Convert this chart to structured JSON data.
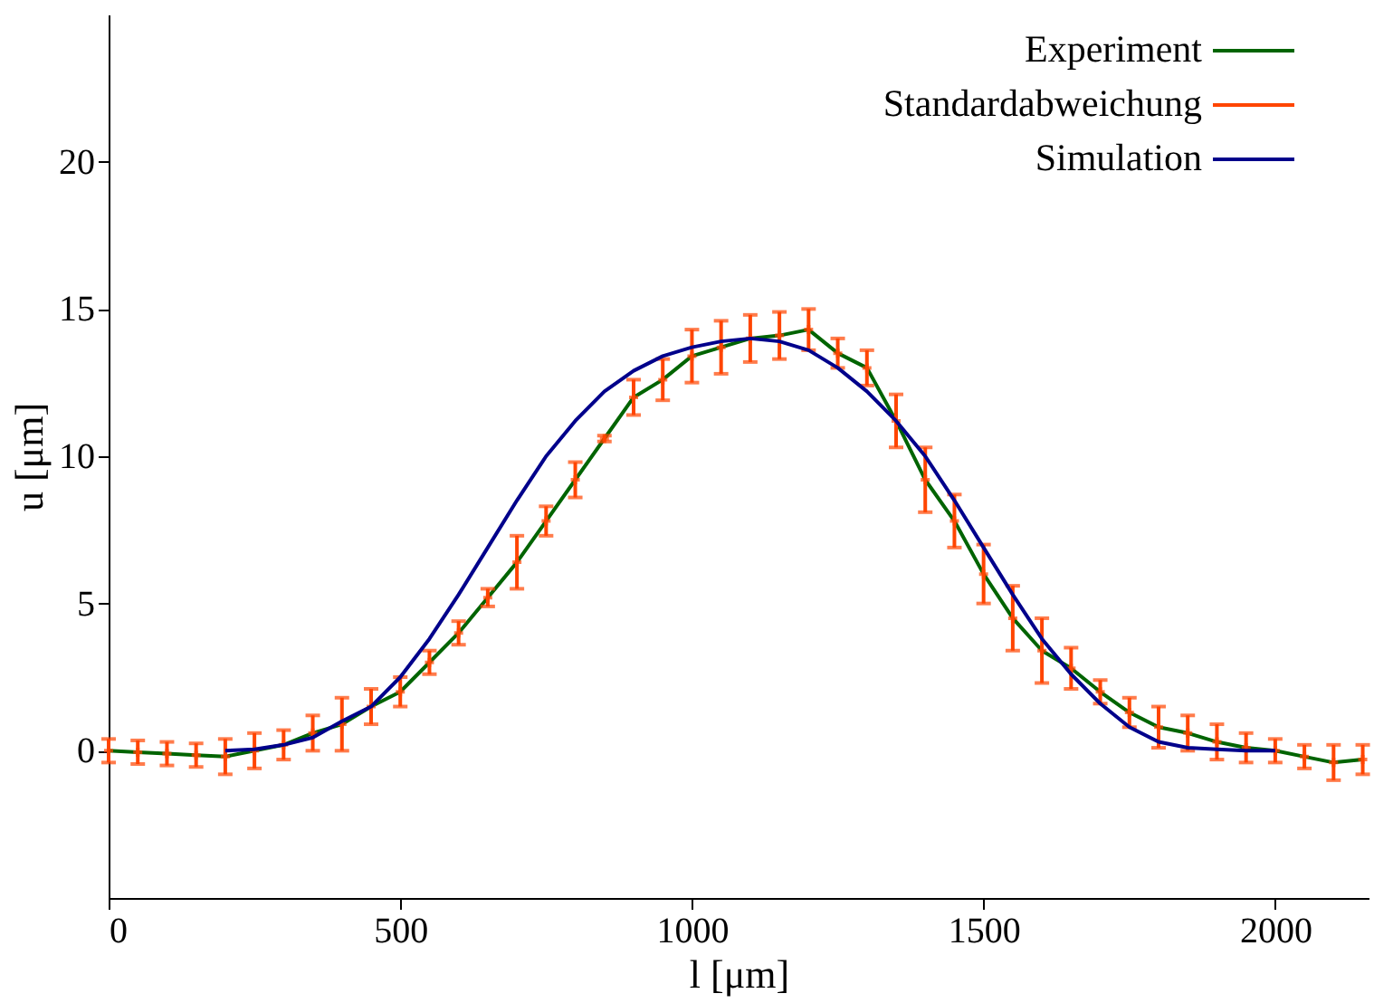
{
  "chart_data": {
    "type": "line",
    "xlabel": "l [μm]",
    "ylabel": "u [μm]",
    "xlim": [
      0,
      2160
    ],
    "ylim": [
      -5,
      25
    ],
    "xticks": [
      0,
      500,
      1000,
      1500,
      2000
    ],
    "yticks": [
      0,
      5,
      10,
      15,
      20
    ],
    "grid": false,
    "legend": "top right",
    "x": [
      0,
      50,
      100,
      150,
      200,
      250,
      300,
      350,
      400,
      450,
      500,
      550,
      600,
      650,
      700,
      750,
      800,
      850,
      900,
      950,
      1000,
      1050,
      1100,
      1150,
      1200,
      1250,
      1300,
      1350,
      1400,
      1450,
      1500,
      1550,
      1600,
      1650,
      1700,
      1750,
      1800,
      1850,
      1900,
      1950,
      2000,
      2050,
      2100,
      2150
    ],
    "series": [
      {
        "name": "Experiment",
        "line_style": "solid",
        "color": "#006400",
        "values": [
          0,
          -0.05,
          -0.1,
          -0.15,
          -0.2,
          0,
          0.2,
          0.6,
          0.9,
          1.5,
          2.0,
          3.0,
          4.0,
          5.2,
          6.4,
          7.8,
          9.2,
          10.6,
          12.0,
          12.6,
          13.4,
          13.7,
          14.0,
          14.1,
          14.3,
          13.5,
          13.0,
          11.2,
          9.2,
          7.8,
          6.0,
          4.5,
          3.4,
          2.8,
          2.0,
          1.3,
          0.8,
          0.6,
          0.3,
          0.1,
          0,
          -0.2,
          -0.4,
          -0.3
        ]
      },
      {
        "name": "Standardabweichung",
        "type": "scatter",
        "marker": "cross",
        "color": "#ff4500",
        "values": [
          0,
          -0.05,
          -0.1,
          -0.15,
          -0.2,
          0,
          0.2,
          0.6,
          0.9,
          1.5,
          2.0,
          3.0,
          4.0,
          5.2,
          6.4,
          7.8,
          9.2,
          10.6,
          12.0,
          12.6,
          13.4,
          13.7,
          14.0,
          14.1,
          14.3,
          13.5,
          13.0,
          11.2,
          9.2,
          7.8,
          6.0,
          4.5,
          3.4,
          2.8,
          2.0,
          1.3,
          0.8,
          0.6,
          0.3,
          0.1,
          0,
          -0.2,
          -0.4,
          -0.3
        ],
        "errors": [
          0.4,
          0.4,
          0.4,
          0.4,
          0.6,
          0.6,
          0.5,
          0.6,
          0.9,
          0.6,
          0.5,
          0.4,
          0.4,
          0.3,
          0.9,
          0.5,
          0.6,
          0.1,
          0.6,
          0.7,
          0.9,
          0.9,
          0.8,
          0.8,
          0.7,
          0.5,
          0.6,
          0.9,
          1.1,
          0.9,
          1.0,
          1.1,
          1.1,
          0.7,
          0.4,
          0.5,
          0.7,
          0.6,
          0.6,
          0.5,
          0.4,
          0.4,
          0.6,
          0.5
        ]
      },
      {
        "name": "Simulation",
        "line_style": "solid",
        "color": "#00008b",
        "x": [
          200,
          250,
          300,
          350,
          400,
          450,
          500,
          550,
          600,
          650,
          700,
          750,
          800,
          850,
          900,
          950,
          1000,
          1050,
          1100,
          1150,
          1200,
          1250,
          1300,
          1350,
          1400,
          1450,
          1500,
          1550,
          1600,
          1650,
          1700,
          1750,
          1800,
          1850,
          1900,
          1950,
          2000
        ],
        "values": [
          0,
          0.05,
          0.2,
          0.45,
          1.0,
          1.5,
          2.5,
          3.8,
          5.3,
          6.9,
          8.5,
          10.0,
          11.2,
          12.2,
          12.9,
          13.4,
          13.7,
          13.9,
          14.0,
          13.9,
          13.6,
          13.0,
          12.2,
          11.2,
          10.0,
          8.5,
          6.9,
          5.3,
          3.8,
          2.6,
          1.6,
          0.8,
          0.3,
          0.1,
          0.05,
          0,
          0
        ]
      }
    ]
  }
}
